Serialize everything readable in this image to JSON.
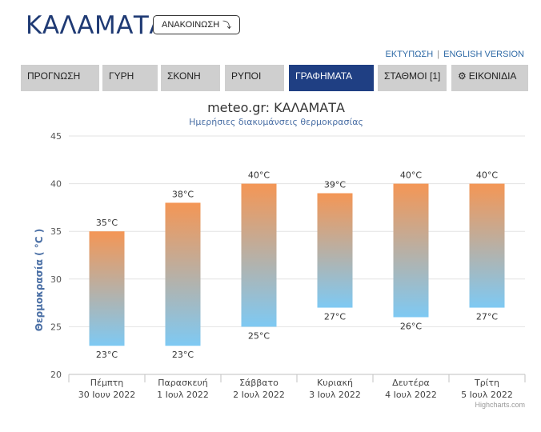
{
  "header": {
    "city": "ΚΑΛΑΜΑΤΑ",
    "announce_label": "ΑΝΑΚΟΙΝΩΣΗ",
    "announce_icon": "arrow-turn-icon",
    "print_label": "ΕΚΤΥΠΩΣΗ",
    "separator": "|",
    "english_label": "ENGLISH VERSION"
  },
  "tabs": [
    {
      "label": "ΠΡΟΓΝΩΣΗ",
      "active": false
    },
    {
      "label": "ΓΥΡΗ",
      "active": false
    },
    {
      "label": "ΣΚΟΝΗ",
      "active": false
    },
    {
      "label": "ΡΥΠΟΙ",
      "active": false
    },
    {
      "label": "ΓΡΑΦΗΜΑΤΑ",
      "active": true
    },
    {
      "label": "ΣΤΑΘΜΟΙ [1]",
      "active": false
    },
    {
      "label": "ΕΙΚΟΝΙΔΙΑ",
      "active": false,
      "icon": "gear-icon"
    }
  ],
  "colors": {
    "accent": "#1f3f83",
    "bar_top": "#f49655",
    "bar_bottom": "#7ec9f3",
    "title": "#333333",
    "subtitle": "#4a6fa5",
    "axis_title": "#4a6fa5"
  },
  "chart_data": {
    "type": "bar",
    "subtype": "columnrange",
    "title": "meteo.gr: ΚΑΛΑΜΑΤΑ",
    "subtitle": "Ημερήσιες διακυμάνσεις θερμοκρασίας",
    "ylabel": "Θερμοκρασία ( °C )",
    "ylim": [
      20,
      45
    ],
    "yticks": [
      20,
      25,
      30,
      35,
      40,
      45
    ],
    "grid": true,
    "categories": [
      {
        "day": "Πέμπτη",
        "date": "30 Ιουν 2022"
      },
      {
        "day": "Παρασκευή",
        "date": "1 Ιουλ 2022"
      },
      {
        "day": "Σάββατο",
        "date": "2 Ιουλ 2022"
      },
      {
        "day": "Κυριακή",
        "date": "3 Ιουλ 2022"
      },
      {
        "day": "Δευτέρα",
        "date": "4 Ιουλ 2022"
      },
      {
        "day": "Τρίτη",
        "date": "5 Ιουλ 2022"
      }
    ],
    "min": [
      23,
      23,
      25,
      27,
      26,
      27
    ],
    "max": [
      35,
      38,
      40,
      39,
      40,
      40
    ],
    "min_labels": [
      "23°C",
      "23°C",
      "25°C",
      "27°C",
      "26°C",
      "27°C"
    ],
    "max_labels": [
      "35°C",
      "38°C",
      "40°C",
      "39°C",
      "40°C",
      "40°C"
    ],
    "credits": "Highcharts.com"
  }
}
